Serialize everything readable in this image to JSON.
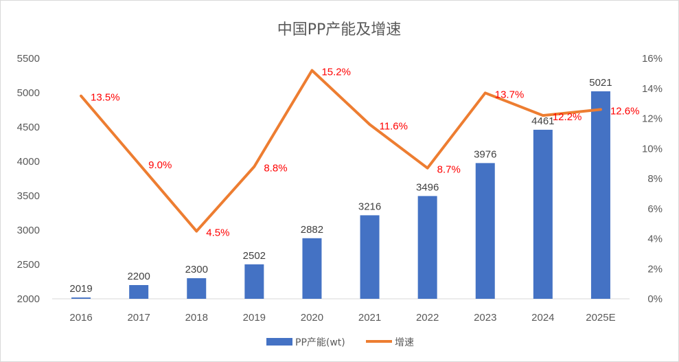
{
  "chart_data": {
    "type": "bar+line",
    "title": "中国PP产能及增速",
    "categories": [
      "2016",
      "2017",
      "2018",
      "2019",
      "2020",
      "2021",
      "2022",
      "2023",
      "2024",
      "2025E"
    ],
    "series": [
      {
        "name": "PP产能(wt)",
        "type": "bar",
        "axis": "left",
        "values": [
          2019,
          2200,
          2300,
          2502,
          2882,
          3216,
          3496,
          3976,
          4461,
          5021
        ],
        "labels": [
          "2019",
          "2200",
          "2300",
          "2502",
          "2882",
          "3216",
          "3496",
          "3976",
          "4461",
          "5021"
        ],
        "color": "#4472c4"
      },
      {
        "name": "增速",
        "type": "line",
        "axis": "right",
        "values": [
          13.5,
          9.0,
          4.5,
          8.8,
          15.2,
          11.6,
          8.7,
          13.7,
          12.2,
          12.6
        ],
        "labels": [
          "13.5%",
          "9.0%",
          "4.5%",
          "8.8%",
          "15.2%",
          "11.6%",
          "8.7%",
          "13.7%",
          "12.2%",
          "12.6%"
        ],
        "color": "#ed7d31",
        "label_color": "#ff0000"
      }
    ],
    "y_left": {
      "min": 2000,
      "max": 5500,
      "ticks": [
        2000,
        2500,
        3000,
        3500,
        4000,
        4500,
        5000,
        5500
      ],
      "tick_labels": [
        "2000",
        "2500",
        "3000",
        "3500",
        "4000",
        "4500",
        "5000",
        "5500"
      ]
    },
    "y_right": {
      "min": 0,
      "max": 16,
      "ticks": [
        0,
        2,
        4,
        6,
        8,
        10,
        12,
        14,
        16
      ],
      "tick_labels": [
        "0%",
        "2%",
        "4%",
        "6%",
        "8%",
        "10%",
        "12%",
        "14%",
        "16%"
      ]
    },
    "grid": false,
    "legend": {
      "position": "bottom",
      "items": [
        {
          "label": "PP产能(wt)",
          "kind": "bar",
          "color": "#4472c4"
        },
        {
          "label": "增速",
          "kind": "line",
          "color": "#ed7d31"
        }
      ]
    }
  }
}
